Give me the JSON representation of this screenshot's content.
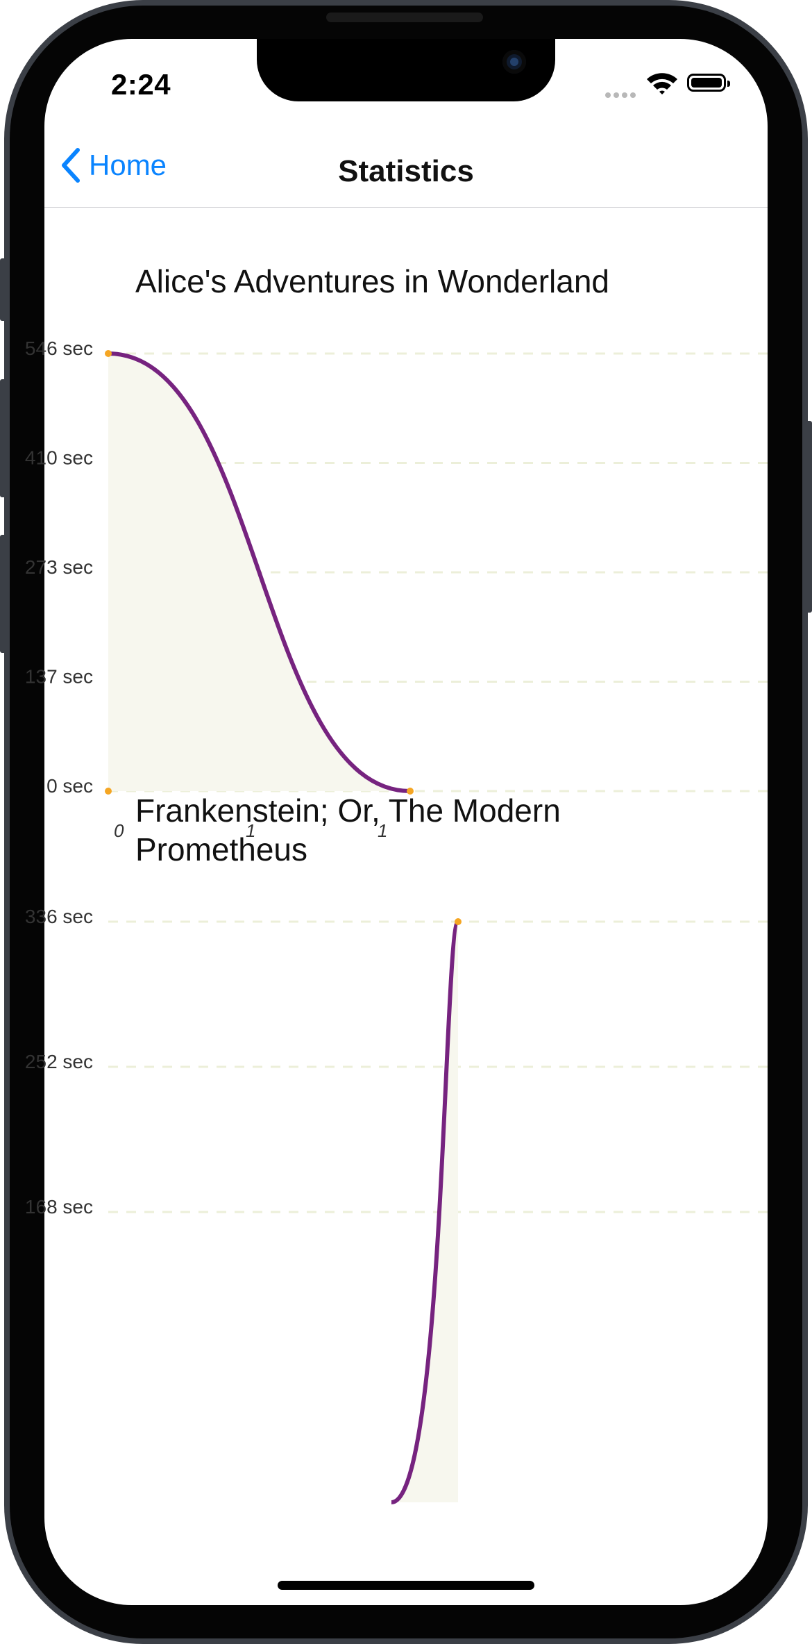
{
  "status_bar": {
    "time": "2:24"
  },
  "nav": {
    "back_label": "Home",
    "title": "Statistics"
  },
  "colors": {
    "accent": "#0a84ff",
    "line": "#76237f",
    "point": "#f5a623",
    "grid": "#ecefd9",
    "area": "#f7f7ee"
  },
  "icons": [
    "chevron-left-icon",
    "wifi-icon",
    "battery-icon",
    "cellular-icon"
  ],
  "books": [
    {
      "title_lines": [
        "Alice's Adventures in Wonderland"
      ]
    },
    {
      "title_lines": [
        "Frankenstein; Or, The Modern",
        "Prometheus"
      ]
    }
  ],
  "chart_data": [
    {
      "type": "line",
      "title": "Alice's Adventures in Wonderland",
      "y_tick_labels": [
        "546 sec",
        "410 sec",
        "273 sec",
        "137 sec",
        "0 sec"
      ],
      "x_tick_labels": [
        "0",
        "1",
        "1"
      ],
      "ylim": [
        0,
        546
      ],
      "grid": true,
      "series": [
        {
          "x": [
            0,
            1
          ],
          "values": [
            546,
            0
          ]
        }
      ],
      "extra_points": [
        {
          "x": 0,
          "y": 0
        }
      ]
    },
    {
      "type": "line",
      "title": "Frankenstein; Or, The Modern Prometheus",
      "y_tick_labels": [
        "336 sec",
        "252 sec",
        "168 sec"
      ],
      "ylim": [
        0,
        336
      ],
      "grid": true,
      "series": [
        {
          "x": [
            0,
            1
          ],
          "values": [
            0,
            336
          ]
        }
      ]
    }
  ]
}
